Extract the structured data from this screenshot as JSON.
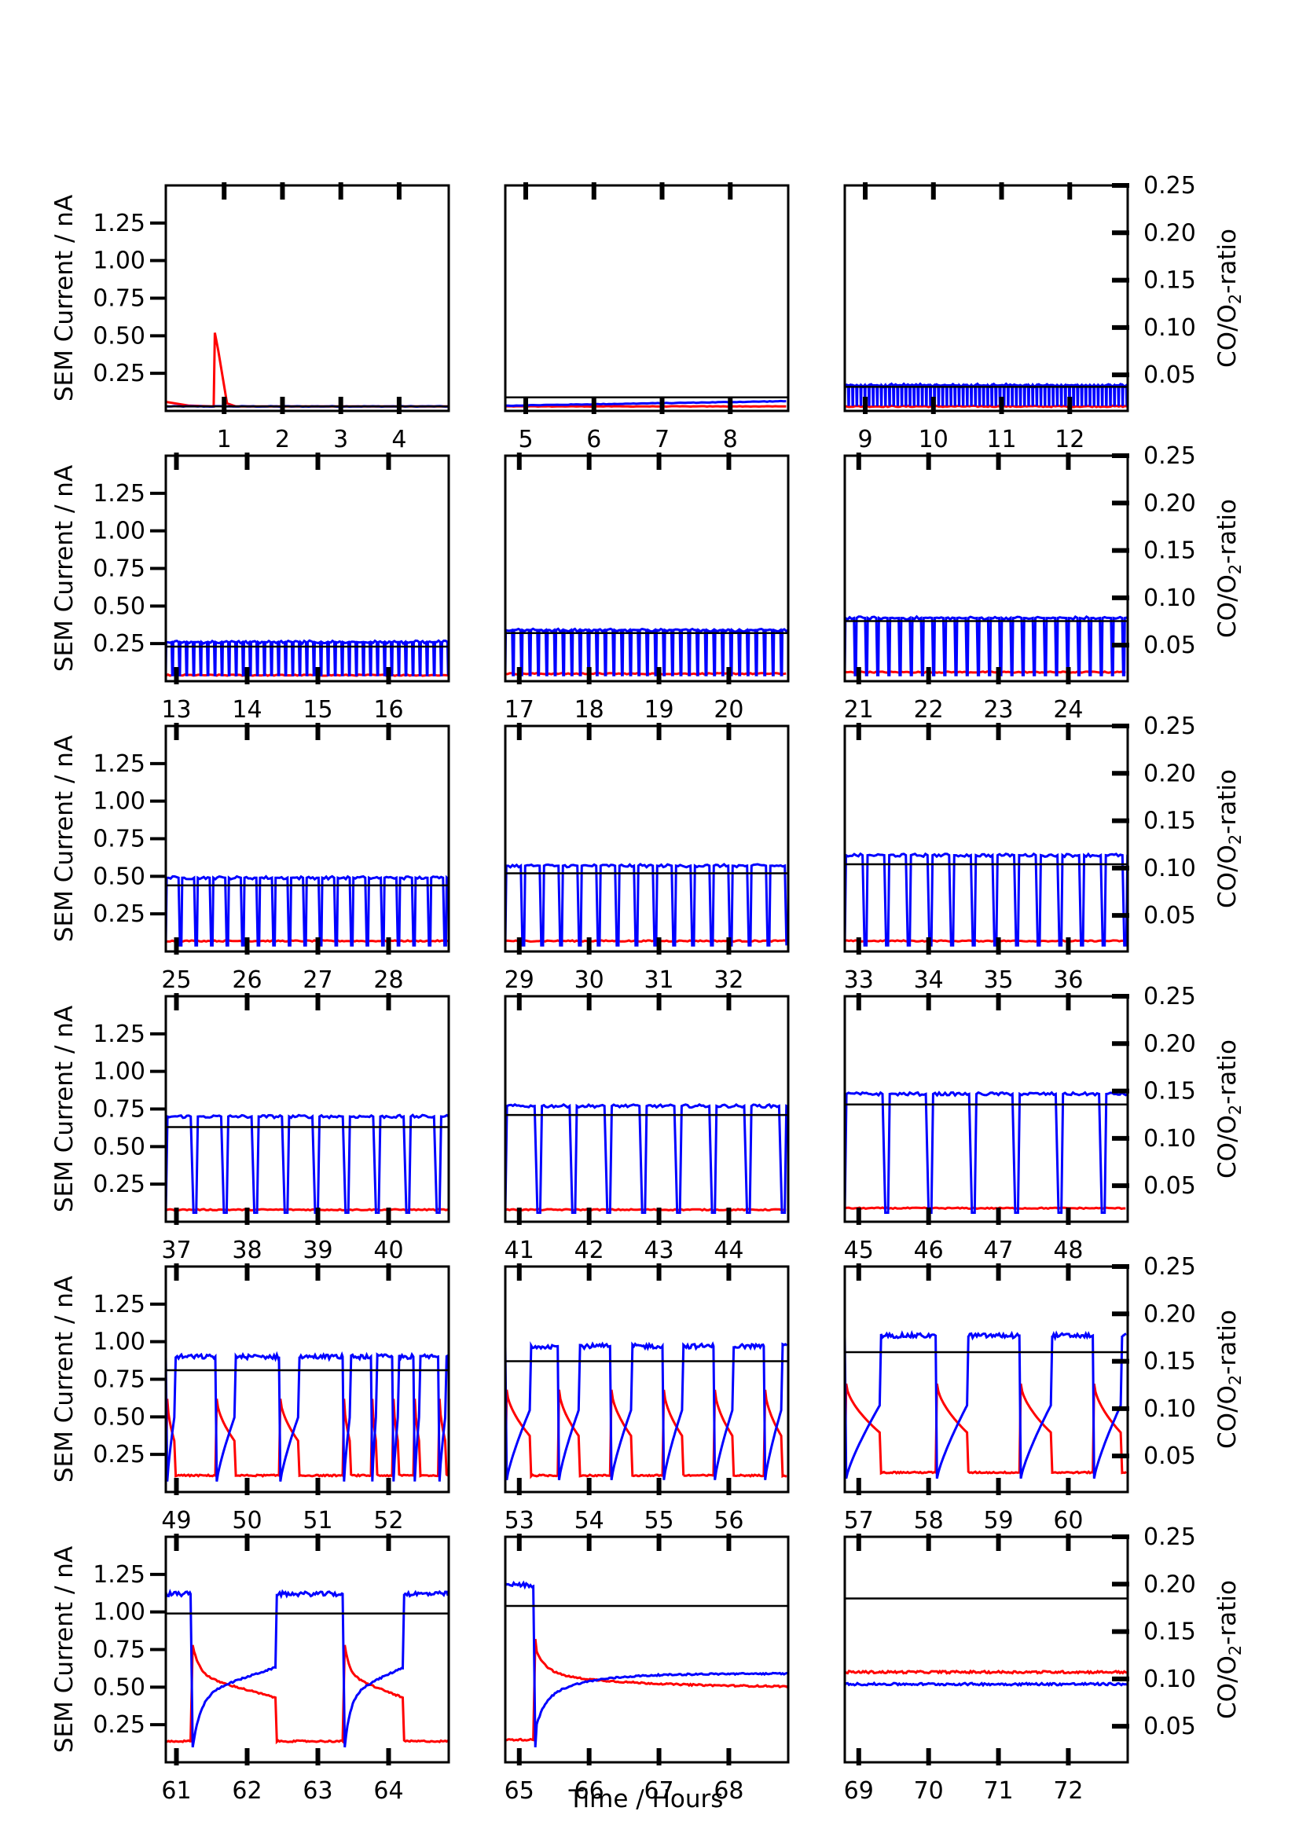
{
  "chart_data": {
    "type": "line",
    "xlabel": "Time / Hours",
    "ylabel_left": "SEM Current / nA",
    "ylabel_right_main": "CO/O",
    "ylabel_right_sub": "2",
    "ylabel_right_tail": "-ratio",
    "y_left_ticks": [
      "0.25",
      "0.50",
      "0.75",
      "1.00",
      "1.25"
    ],
    "y_left_range": [
      0,
      1.5
    ],
    "y_right_ticks": [
      "0.05",
      "0.10",
      "0.15",
      "0.20",
      "0.25"
    ],
    "y_right_range": [
      0.012,
      0.25
    ],
    "grid": false,
    "legend": "none",
    "series_colors": {
      "red": "#ff0000",
      "blue": "#0000ff",
      "ratio": "#000000"
    },
    "panels": [
      {
        "x_ticks": [
          "1",
          "2",
          "3",
          "4"
        ],
        "x_range": [
          0,
          4.85
        ],
        "mode": "first",
        "blue_high": 0.03,
        "red_low": 0.03,
        "ratio": 0.03
      },
      {
        "x_ticks": [
          "5",
          "6",
          "7",
          "8"
        ],
        "x_range": [
          4.7,
          8.85
        ],
        "mode": "ramp",
        "blue_high": 0.06,
        "red_low": 0.03,
        "ratio": 0.09
      },
      {
        "x_ticks": [
          "9",
          "10",
          "11",
          "12"
        ],
        "x_range": [
          8.7,
          12.85
        ],
        "mode": "dense",
        "period": 0.06,
        "blue_high": 0.17,
        "blue_low": 0.04,
        "red_low": 0.03,
        "ratio": 0.16
      },
      {
        "x_ticks": [
          "13",
          "14",
          "15",
          "16"
        ],
        "x_range": [
          12.85,
          16.85
        ],
        "mode": "dense",
        "period": 0.1,
        "blue_high": 0.26,
        "blue_low": 0.04,
        "red_low": 0.04,
        "ratio": 0.23
      },
      {
        "x_ticks": [
          "17",
          "18",
          "19",
          "20"
        ],
        "x_range": [
          16.8,
          20.85
        ],
        "mode": "dense",
        "period": 0.12,
        "blue_high": 0.34,
        "blue_low": 0.04,
        "red_low": 0.05,
        "ratio": 0.32
      },
      {
        "x_ticks": [
          "21",
          "22",
          "23",
          "24"
        ],
        "x_range": [
          20.8,
          24.85
        ],
        "mode": "dense",
        "period": 0.16,
        "blue_high": 0.42,
        "blue_low": 0.04,
        "red_low": 0.06,
        "ratio": 0.4
      },
      {
        "x_ticks": [
          "25",
          "26",
          "27",
          "28"
        ],
        "x_range": [
          24.85,
          28.85
        ],
        "mode": "dense",
        "period": 0.22,
        "blue_high": 0.49,
        "blue_low": 0.04,
        "red_low": 0.07,
        "ratio": 0.44
      },
      {
        "x_ticks": [
          "29",
          "30",
          "31",
          "32"
        ],
        "x_range": [
          28.8,
          32.85
        ],
        "mode": "dense",
        "period": 0.27,
        "blue_high": 0.57,
        "blue_low": 0.04,
        "red_low": 0.07,
        "ratio": 0.52
      },
      {
        "x_ticks": [
          "33",
          "34",
          "35",
          "36"
        ],
        "x_range": [
          32.8,
          36.85
        ],
        "mode": "dense",
        "period": 0.31,
        "blue_high": 0.64,
        "blue_low": 0.04,
        "red_low": 0.07,
        "ratio": 0.58
      },
      {
        "x_ticks": [
          "37",
          "38",
          "39",
          "40"
        ],
        "x_range": [
          36.85,
          40.85
        ],
        "mode": "dense",
        "period": 0.43,
        "blue_high": 0.7,
        "blue_low": 0.06,
        "red_low": 0.08,
        "ratio": 0.63
      },
      {
        "x_ticks": [
          "41",
          "42",
          "43",
          "44"
        ],
        "x_range": [
          40.8,
          44.85
        ],
        "mode": "dense",
        "period": 0.5,
        "blue_high": 0.77,
        "blue_low": 0.06,
        "red_low": 0.08,
        "ratio": 0.71
      },
      {
        "x_ticks": [
          "45",
          "46",
          "47",
          "48"
        ],
        "x_range": [
          44.8,
          48.85
        ],
        "mode": "dense",
        "period": 0.62,
        "blue_high": 0.85,
        "blue_low": 0.06,
        "red_low": 0.09,
        "ratio": 0.78
      },
      {
        "x_ticks": [
          "49",
          "50",
          "51",
          "52"
        ],
        "x_range": [
          48.85,
          52.85
        ],
        "mode": "mixed",
        "blue_high": 0.9,
        "blue_low": 0.07,
        "red_low": 0.11,
        "red_peak": 0.62,
        "ratio": 0.81,
        "cycles": [
          [
            48.85,
            48.97
          ],
          [
            49.55,
            49.82
          ],
          [
            50.45,
            50.72
          ],
          [
            51.35,
            51.45
          ],
          [
            51.75,
            51.82
          ],
          [
            52.05,
            52.13
          ],
          [
            52.35,
            52.43
          ],
          [
            52.7,
            52.8
          ]
        ]
      },
      {
        "x_ticks": [
          "53",
          "54",
          "55",
          "56"
        ],
        "x_range": [
          52.8,
          56.85
        ],
        "mode": "mixed",
        "blue_high": 0.97,
        "blue_low": 0.08,
        "red_low": 0.11,
        "red_peak": 0.68,
        "ratio": 0.87,
        "cycles": [
          [
            52.8,
            53.15
          ],
          [
            53.55,
            53.85
          ],
          [
            54.3,
            54.6
          ],
          [
            55.05,
            55.33
          ],
          [
            55.78,
            56.05
          ],
          [
            56.5,
            56.75
          ]
        ]
      },
      {
        "x_ticks": [
          "57",
          "58",
          "59",
          "60"
        ],
        "x_range": [
          56.8,
          60.85
        ],
        "mode": "mixed",
        "blue_high": 1.04,
        "blue_low": 0.09,
        "red_low": 0.13,
        "red_peak": 0.72,
        "ratio": 0.93,
        "cycles": [
          [
            56.8,
            57.3
          ],
          [
            58.1,
            58.55
          ],
          [
            59.3,
            59.75
          ],
          [
            60.35,
            60.75
          ]
        ]
      },
      {
        "x_ticks": [
          "61",
          "62",
          "63",
          "64"
        ],
        "x_range": [
          60.85,
          64.85
        ],
        "mode": "long",
        "blue_high": 1.12,
        "blue_low": 0.1,
        "red_low": 0.14,
        "red_peak": 0.78,
        "ratio": 0.99,
        "cycles": [
          [
            61.2,
            62.4
          ],
          [
            63.35,
            64.2
          ]
        ]
      },
      {
        "x_ticks": [
          "65",
          "66",
          "67",
          "68"
        ],
        "x_range": [
          64.8,
          68.85
        ],
        "mode": "end",
        "blue_high": 1.18,
        "blue_low": 0.1,
        "red_low": 0.15,
        "red_peak": 0.82,
        "red_end": 0.5,
        "blue_end": 0.59,
        "step_x": 65.2,
        "ratio": 1.04
      },
      {
        "x_ticks": [
          "69",
          "70",
          "71",
          "72"
        ],
        "x_range": [
          68.8,
          72.85
        ],
        "mode": "flat",
        "red_level": 0.6,
        "blue_level": 0.52,
        "ratio": 1.09
      }
    ]
  }
}
